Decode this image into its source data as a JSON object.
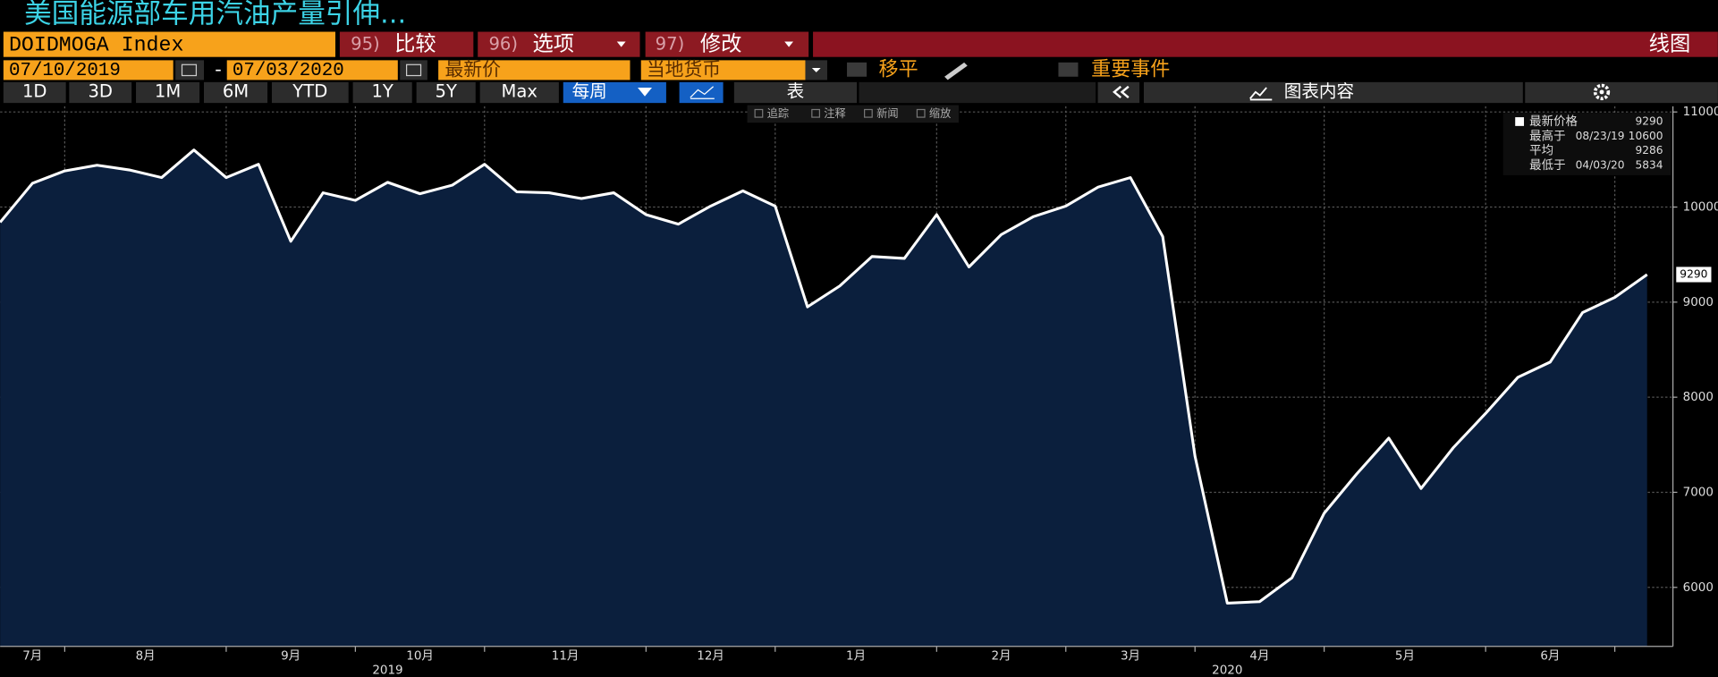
{
  "title": "美国能源部车用汽油产量引伸...",
  "toolbar_row1": {
    "ticker": "DOIDMOGA Index",
    "buttons": [
      {
        "num": "95)",
        "label": "比较"
      },
      {
        "num": "96)",
        "label": "选项"
      },
      {
        "num": "97)",
        "label": "修改"
      }
    ],
    "chart_type": "线图"
  },
  "toolbar_row2": {
    "start_date": "07/10/2019",
    "separator": "-",
    "end_date": "07/03/2020",
    "field": "最新价",
    "currency": "当地货币",
    "smoothing": "移平",
    "events": "重要事件"
  },
  "toolbar_row3": {
    "periods": [
      "1D",
      "3D",
      "1M",
      "6M",
      "YTD",
      "1Y",
      "5Y",
      "Max"
    ],
    "frequency": "每周",
    "table": "表",
    "chart_content": "图表内容"
  },
  "chart_tools": [
    "追踪",
    "注释",
    "新闻",
    "缩放"
  ],
  "chart_data": {
    "type": "area",
    "color": "#0b1f3d",
    "line_color": "#ffffff",
    "values": [
      9840,
      10250,
      10380,
      10440,
      10390,
      10310,
      10600,
      10310,
      10450,
      9640,
      10150,
      10070,
      10260,
      10140,
      10230,
      10450,
      10160,
      10150,
      10090,
      10150,
      9920,
      9820,
      10010,
      10170,
      10010,
      8950,
      9170,
      9480,
      9460,
      9920,
      9370,
      9710,
      9900,
      10010,
      10210,
      10310,
      9690,
      7380,
      5834,
      5850,
      6100,
      6780,
      7190,
      7570,
      7040,
      7470,
      7830,
      8210,
      8370,
      8890,
      9050,
      9290
    ],
    "ylim": [
      5380,
      11060
    ],
    "yticks": [
      6000,
      7000,
      8000,
      9000,
      10000,
      11000
    ],
    "xlim": [
      0,
      51.8
    ],
    "xticks": [
      {
        "value": 1,
        "label": "7月"
      },
      {
        "value": 4.5,
        "label": "8月"
      },
      {
        "value": 9,
        "label": "9月"
      },
      {
        "value": 13,
        "label": "10月"
      },
      {
        "value": 17.5,
        "label": "11月"
      },
      {
        "value": 22,
        "label": "12月"
      },
      {
        "value": 26.5,
        "label": "1月"
      },
      {
        "value": 31,
        "label": "2月"
      },
      {
        "value": 35,
        "label": "3月"
      },
      {
        "value": 39,
        "label": "4月"
      },
      {
        "value": 43.5,
        "label": "5月"
      },
      {
        "value": 48,
        "label": "6月"
      }
    ],
    "xgrid": [
      2,
      7,
      11,
      15,
      20,
      24,
      29,
      33,
      37,
      41,
      46,
      50
    ],
    "year_ticks": [
      {
        "value": 12,
        "label": "2019"
      },
      {
        "value": 38,
        "label": "2020"
      }
    ],
    "grid": true,
    "legend": [
      {
        "label": "最新价格",
        "value": 9290
      },
      {
        "label": "最高于",
        "date": "08/23/19",
        "value": 10600
      },
      {
        "label": "平均",
        "value": 9286
      },
      {
        "label": "最低于",
        "date": "04/03/20",
        "value": 5834
      }
    ]
  }
}
